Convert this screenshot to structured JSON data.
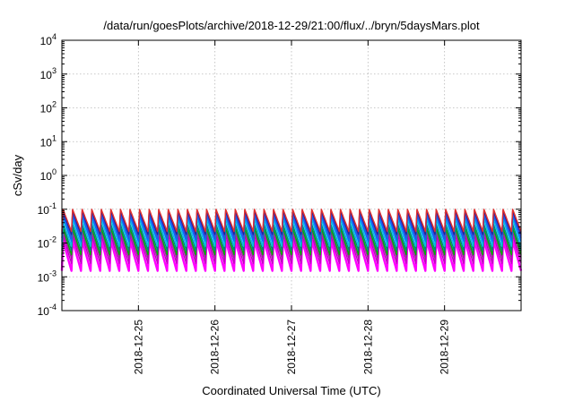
{
  "chart_data": {
    "type": "line",
    "title": "/data/run/goesPlots/archive/2018-12-29/21:00/flux/../bryn/5daysMars.plot",
    "xlabel": "Coordinated Universal Time (UTC)",
    "ylabel": "cSv/day",
    "y_scale": "log",
    "ylim": [
      0.0001,
      10000
    ],
    "xlim": [
      "2018-12-24T00:00",
      "2018-12-30T00:00"
    ],
    "y_ticks": [
      {
        "base": "10",
        "exp": "-4",
        "value": 0.0001
      },
      {
        "base": "10",
        "exp": "-3",
        "value": 0.001
      },
      {
        "base": "10",
        "exp": "-2",
        "value": 0.01
      },
      {
        "base": "10",
        "exp": "-1",
        "value": 0.1
      },
      {
        "base": "10",
        "exp": "0",
        "value": 1
      },
      {
        "base": "10",
        "exp": "1",
        "value": 10
      },
      {
        "base": "10",
        "exp": "2",
        "value": 100
      },
      {
        "base": "10",
        "exp": "3",
        "value": 1000
      },
      {
        "base": "10",
        "exp": "4",
        "value": 10000
      }
    ],
    "x_ticks": [
      "2018-12-25",
      "2018-12-26",
      "2018-12-27",
      "2018-12-28",
      "2018-12-29"
    ],
    "grid": true,
    "legend": "none",
    "sawtooth_period_hours": 3,
    "series": [
      {
        "color": "#ff00ff",
        "peak": 0.012,
        "trough": 0.0015
      },
      {
        "color": "#c000c0",
        "peak": 0.017,
        "trough": 0.0025
      },
      {
        "color": "#a020a0",
        "peak": 0.022,
        "trough": 0.0035
      },
      {
        "color": "#00b000",
        "peak": 0.028,
        "trough": 0.0045
      },
      {
        "color": "#008080",
        "peak": 0.036,
        "trough": 0.006
      },
      {
        "color": "#00c0e0",
        "peak": 0.05,
        "trough": 0.008
      },
      {
        "color": "#0070ff",
        "peak": 0.065,
        "trough": 0.011
      },
      {
        "color": "#3050e0",
        "peak": 0.08,
        "trough": 0.014
      },
      {
        "color": "#2020a0",
        "peak": 0.09,
        "trough": 0.018
      },
      {
        "color": "#e03030",
        "peak": 0.1,
        "trough": 0.022
      }
    ]
  }
}
